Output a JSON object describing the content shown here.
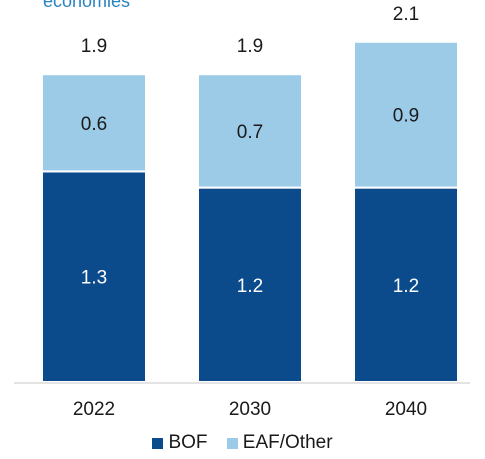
{
  "subtitle_fragment": "economies",
  "colors": {
    "bof": "#0b4a8b",
    "eaf": "#9ccbe8"
  },
  "chart_data": {
    "type": "bar",
    "stacked": true,
    "categories": [
      "2022",
      "2030",
      "2040"
    ],
    "series": [
      {
        "name": "BOF",
        "values": [
          1.3,
          1.2,
          1.2
        ]
      },
      {
        "name": "EAF/Other",
        "values": [
          0.6,
          0.7,
          0.9
        ]
      }
    ],
    "totals": [
      "1.9",
      "1.9",
      "2.1"
    ],
    "value_labels": {
      "BOF": [
        "1.3",
        "1.2",
        "1.2"
      ],
      "EAF/Other": [
        "0.6",
        "0.7",
        "0.9"
      ]
    },
    "ylim": [
      0,
      2.1
    ],
    "grid": false,
    "legend_position": "bottom"
  },
  "legend": {
    "bof_label": "BOF",
    "eaf_label": "EAF/Other"
  }
}
